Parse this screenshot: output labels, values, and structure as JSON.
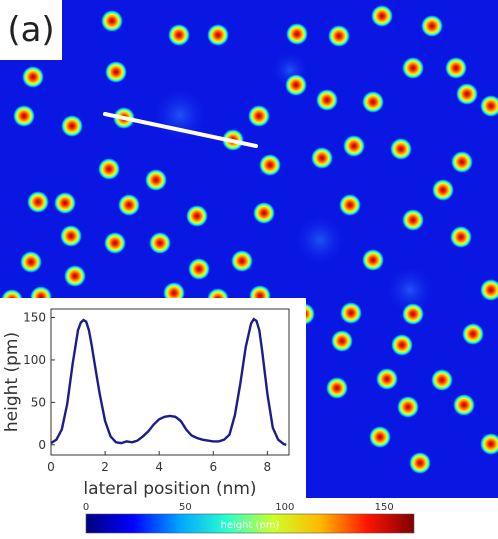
{
  "panel_label": "(a)",
  "chart_data": [
    {
      "type": "line",
      "title": "",
      "xlabel": "lateral position (nm)",
      "ylabel": "height (pm)",
      "xlim": [
        0,
        8.8
      ],
      "ylim": [
        -12,
        160
      ],
      "xticks": [
        0,
        2,
        4,
        6,
        8
      ],
      "yticks": [
        0,
        50,
        100,
        150
      ],
      "grid": false,
      "series": [
        {
          "color": "#1c1c8c",
          "x": [
            0,
            0.2,
            0.4,
            0.6,
            0.8,
            1.0,
            1.1,
            1.2,
            1.3,
            1.4,
            1.5,
            1.6,
            1.8,
            2.0,
            2.2,
            2.4,
            2.6,
            2.8,
            3.0,
            3.2,
            3.4,
            3.6,
            3.8,
            4.0,
            4.2,
            4.4,
            4.6,
            4.8,
            5.0,
            5.2,
            5.4,
            5.6,
            5.8,
            6.0,
            6.2,
            6.4,
            6.6,
            6.8,
            7.0,
            7.2,
            7.4,
            7.5,
            7.6,
            7.7,
            7.8,
            8.0,
            8.2,
            8.4,
            8.6,
            8.7
          ],
          "y": [
            2,
            6,
            18,
            48,
            95,
            135,
            144,
            147,
            145,
            135,
            118,
            98,
            60,
            28,
            10,
            3,
            2,
            4,
            3,
            5,
            10,
            16,
            24,
            30,
            33,
            34,
            33,
            28,
            18,
            11,
            8,
            6,
            5,
            4,
            4,
            6,
            12,
            35,
            72,
            115,
            143,
            148,
            146,
            135,
            112,
            60,
            20,
            6,
            1,
            0
          ]
        }
      ]
    },
    {
      "type": "heatmap",
      "colorbar": {
        "label": "height (pm)",
        "ticks": [
          0,
          50,
          100,
          150
        ],
        "range": [
          0,
          165
        ],
        "colors": [
          "#00007f",
          "#0000ff",
          "#00a5ff",
          "#28ffce",
          "#ceff28",
          "#ffb900",
          "#ff1400",
          "#7f0000"
        ]
      }
    }
  ]
}
